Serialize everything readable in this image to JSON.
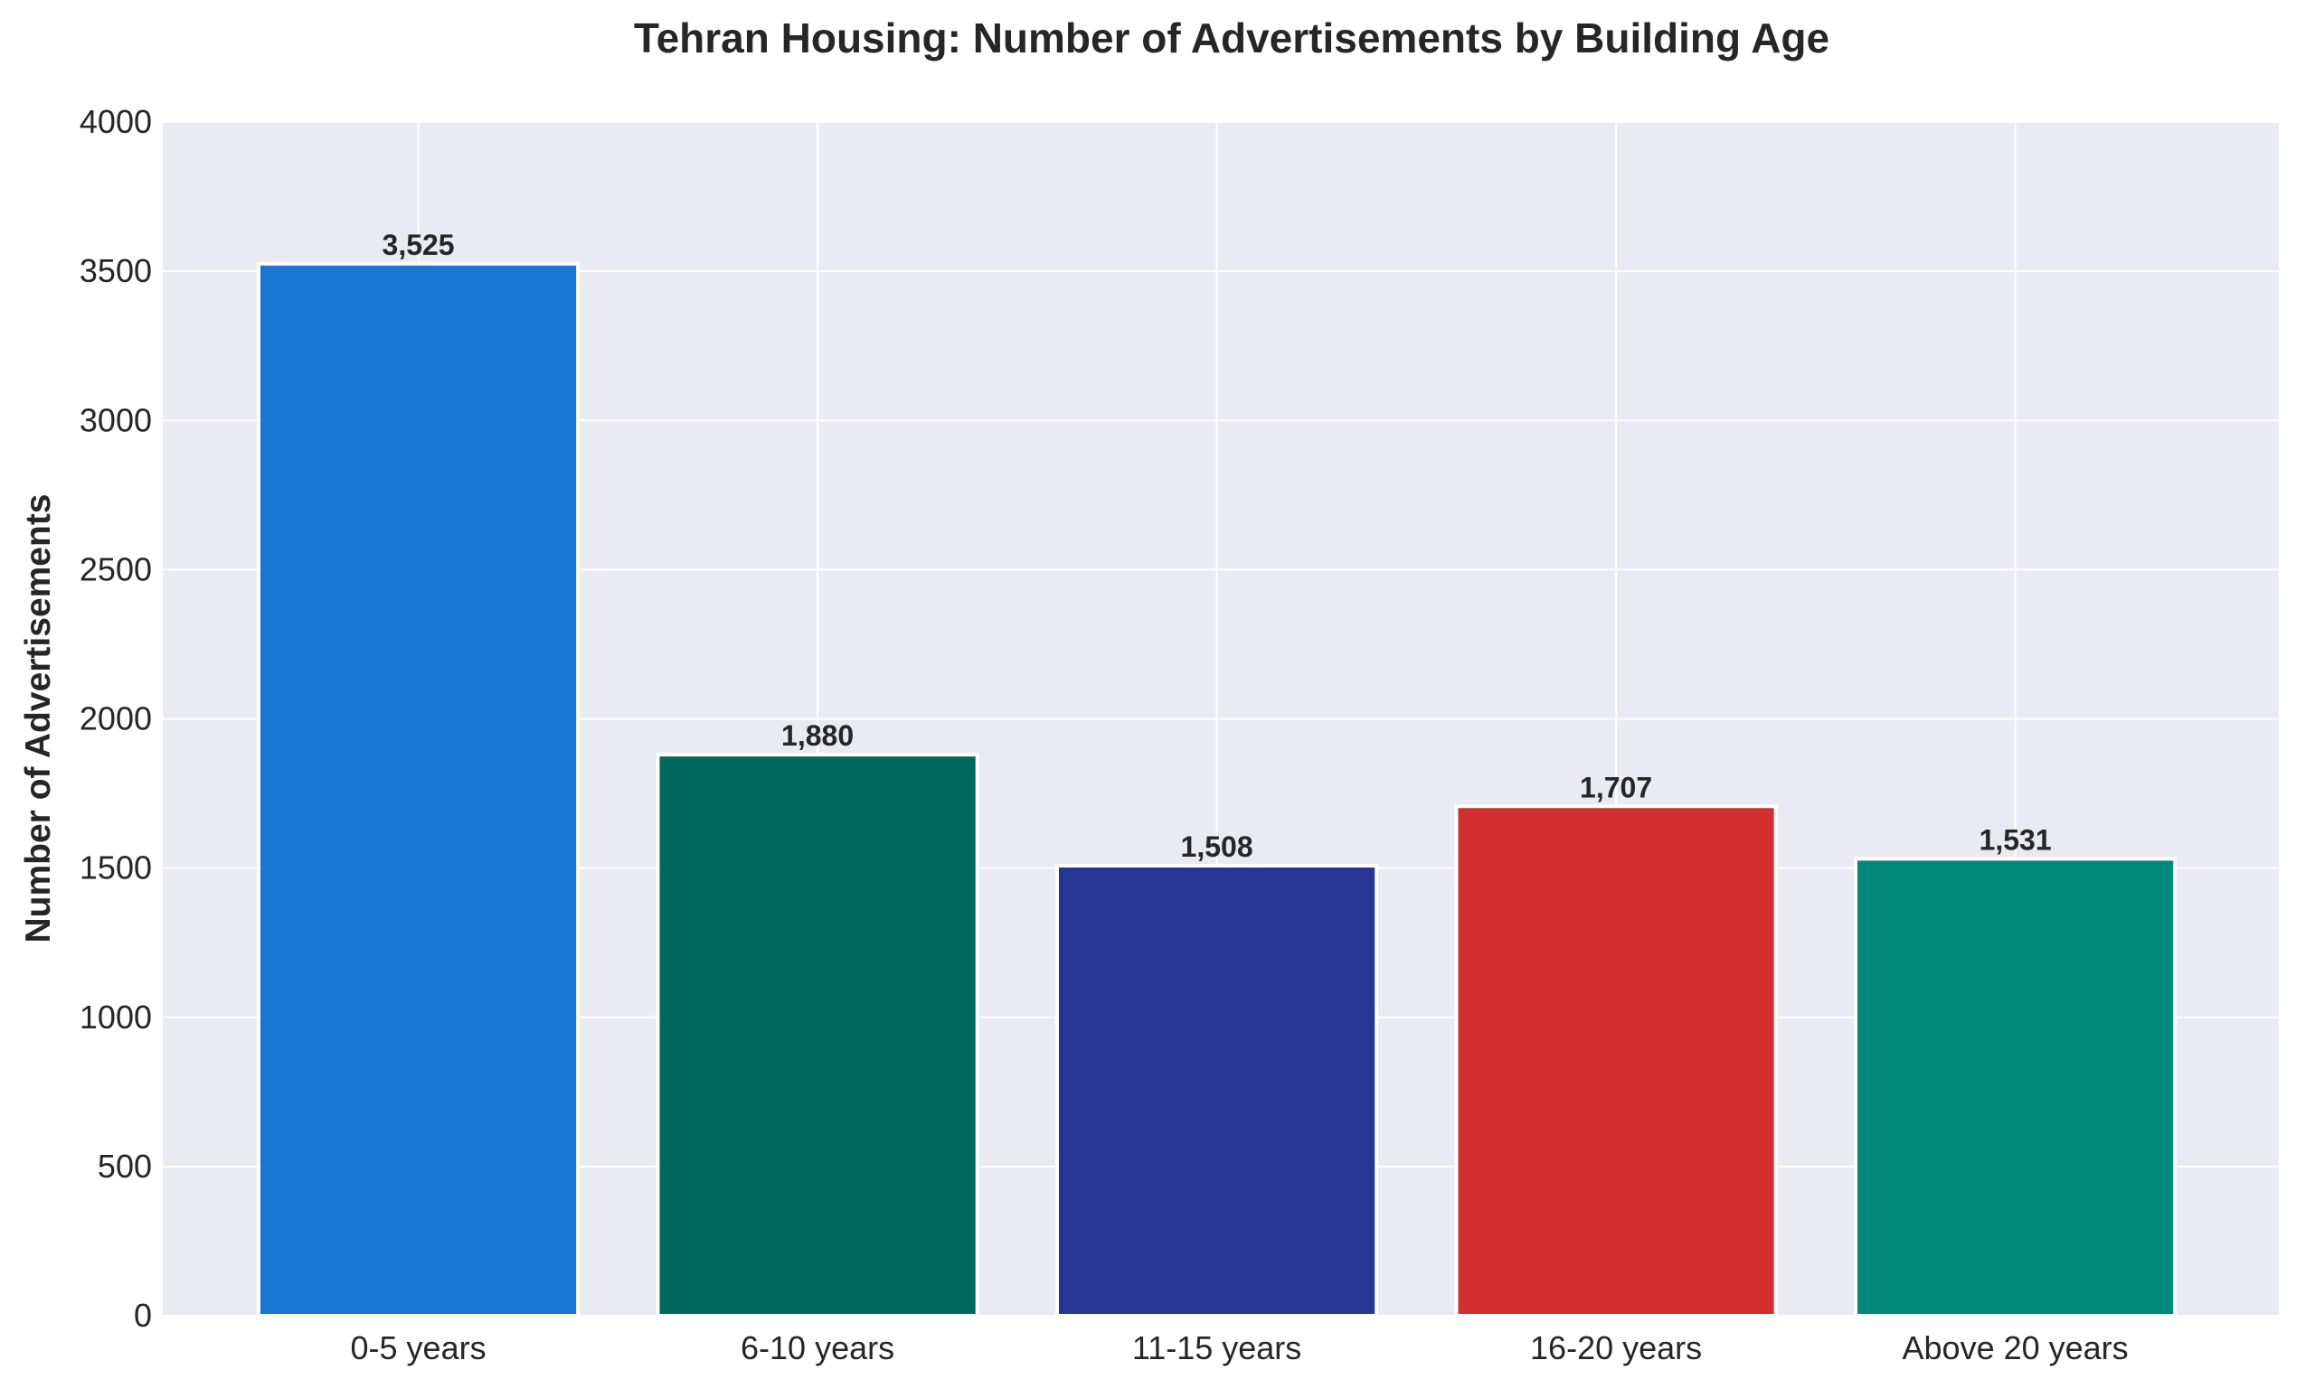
{
  "chart_data": {
    "type": "bar",
    "title": "Tehran Housing: Number of Advertisements by Building Age",
    "xlabel": "",
    "ylabel": "Number of Advertisements",
    "categories": [
      "0-5 years",
      "6-10 years",
      "11-15 years",
      "16-20 years",
      "Above 20 years"
    ],
    "values": [
      3525,
      1880,
      1508,
      1707,
      1531
    ],
    "data_labels": [
      "3,525",
      "1,880",
      "1,508",
      "1,707",
      "1,531"
    ],
    "colors": [
      "#1976D2",
      "#00695C",
      "#283593",
      "#D32F2F",
      "#00897B"
    ],
    "ylim": [
      0,
      4000
    ],
    "yticks": [
      0,
      500,
      1000,
      1500,
      2000,
      2500,
      3000,
      3500,
      4000
    ],
    "grid": true,
    "legend": "none",
    "background_color": "#EAEAF2",
    "grid_color": "#FFFFFF"
  }
}
